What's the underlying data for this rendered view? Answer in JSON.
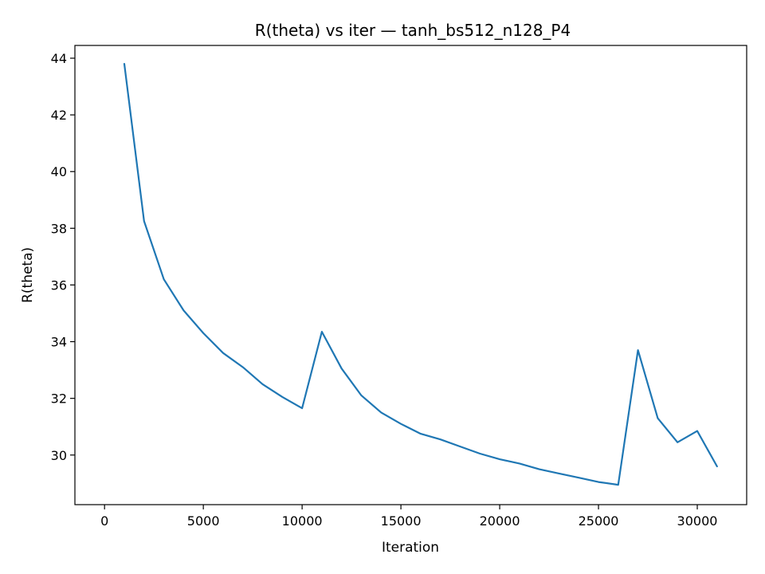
{
  "chart_data": {
    "type": "line",
    "title": "R(theta) vs iter — tanh_bs512_n128_P4",
    "xlabel": "Iteration",
    "ylabel": "R(theta)",
    "xlim": [
      -1500,
      32500
    ],
    "ylim": [
      28.25,
      44.45
    ],
    "xticks": [
      0,
      5000,
      10000,
      15000,
      20000,
      25000,
      30000
    ],
    "yticks": [
      30,
      32,
      34,
      36,
      38,
      40,
      42,
      44
    ],
    "grid": false,
    "series_color": "#1f77b4",
    "x": [
      1000,
      2000,
      3000,
      4000,
      5000,
      6000,
      7000,
      8000,
      9000,
      10000,
      11000,
      12000,
      13000,
      14000,
      15000,
      16000,
      17000,
      18000,
      19000,
      20000,
      21000,
      22000,
      23000,
      24000,
      25000,
      26000,
      27000,
      28000,
      29000,
      30000,
      31000
    ],
    "y": [
      43.8,
      38.25,
      36.2,
      35.1,
      34.3,
      33.6,
      33.1,
      32.5,
      32.05,
      31.65,
      34.35,
      33.05,
      32.1,
      31.5,
      31.1,
      30.75,
      30.55,
      30.3,
      30.05,
      29.85,
      29.7,
      29.5,
      29.35,
      29.2,
      29.05,
      28.95,
      33.7,
      31.3,
      30.45,
      30.85,
      29.6
    ]
  }
}
